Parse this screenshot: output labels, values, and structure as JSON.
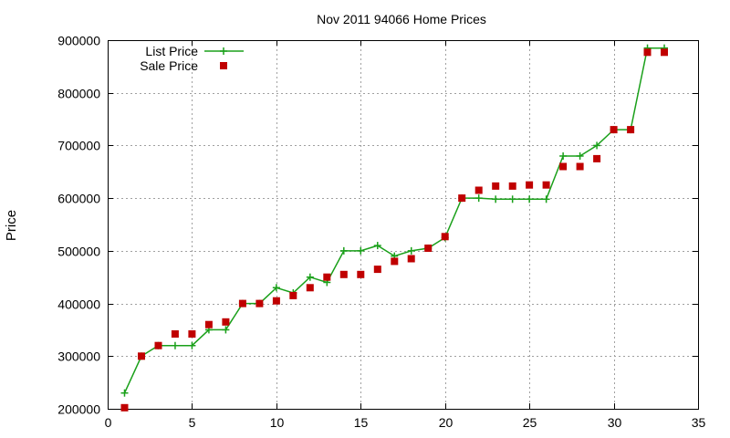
{
  "chart_data": {
    "type": "line",
    "title": "Nov 2011 94066 Home Prices",
    "xlabel": "",
    "ylabel": "Price",
    "xlim": [
      0,
      35
    ],
    "ylim": [
      200000,
      900000
    ],
    "xticks": [
      0,
      5,
      10,
      15,
      20,
      25,
      30,
      35
    ],
    "yticks": [
      200000,
      300000,
      400000,
      500000,
      600000,
      700000,
      800000,
      900000
    ],
    "grid": true,
    "legend_position": "top-left",
    "x": [
      1,
      2,
      3,
      4,
      5,
      6,
      7,
      8,
      9,
      10,
      11,
      12,
      13,
      14,
      15,
      16,
      17,
      18,
      19,
      20,
      21,
      22,
      23,
      24,
      25,
      26,
      27,
      28,
      29,
      30,
      31,
      32,
      33
    ],
    "series": [
      {
        "name": "List Price",
        "style": "line-with-plus-markers",
        "color": "#1aa01a",
        "values": [
          230000,
          300000,
          320000,
          320000,
          320000,
          350000,
          350000,
          400000,
          400000,
          430000,
          420000,
          450000,
          440000,
          500000,
          500000,
          510000,
          490000,
          500000,
          505000,
          525000,
          600000,
          600000,
          598000,
          598000,
          598000,
          598000,
          680000,
          680000,
          700000,
          730000,
          730000,
          885000,
          885000
        ]
      },
      {
        "name": "Sale Price",
        "style": "square-markers",
        "color": "#c00000",
        "values": [
          202000,
          300000,
          320000,
          342000,
          342000,
          360000,
          365000,
          400000,
          400000,
          405000,
          415000,
          430000,
          450000,
          455000,
          455000,
          465000,
          480000,
          485000,
          505000,
          527000,
          600000,
          615000,
          623000,
          623000,
          625000,
          625000,
          660000,
          660000,
          675000,
          730000,
          730000,
          877000,
          877000
        ]
      }
    ]
  }
}
